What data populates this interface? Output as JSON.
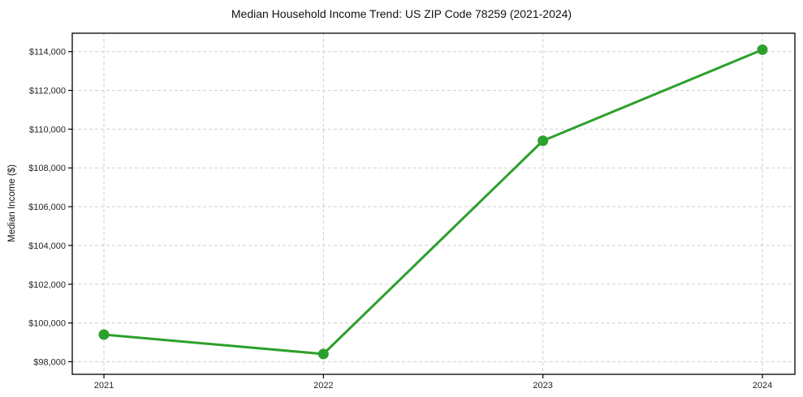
{
  "chart_data": {
    "type": "line",
    "title": "Median Household Income Trend: US ZIP Code 78259 (2021-2024)",
    "xlabel": "",
    "ylabel": "Median Income ($)",
    "x": [
      2021,
      2022,
      2023,
      2024
    ],
    "xtick_labels": [
      "2021",
      "2022",
      "2023",
      "2024"
    ],
    "series": [
      {
        "name": "Median Household Income",
        "values": [
          99400,
          98400,
          109400,
          114100
        ]
      }
    ],
    "yticks": [
      98000,
      100000,
      102000,
      104000,
      106000,
      108000,
      110000,
      112000,
      114000
    ],
    "ytick_labels": [
      "$98,000",
      "$100,000",
      "$102,000",
      "$104,000",
      "$106,000",
      "$108,000",
      "$110,000",
      "$112,000",
      "$114,000"
    ],
    "ylim": [
      97350,
      114950
    ],
    "grid": true,
    "grid_style": "dashed",
    "legend": "none",
    "colors": {
      "line": "#2ca02c",
      "marker": "#2ca02c",
      "grid": "#cfcfcf",
      "spine": "#000000",
      "text": "#262626"
    }
  }
}
